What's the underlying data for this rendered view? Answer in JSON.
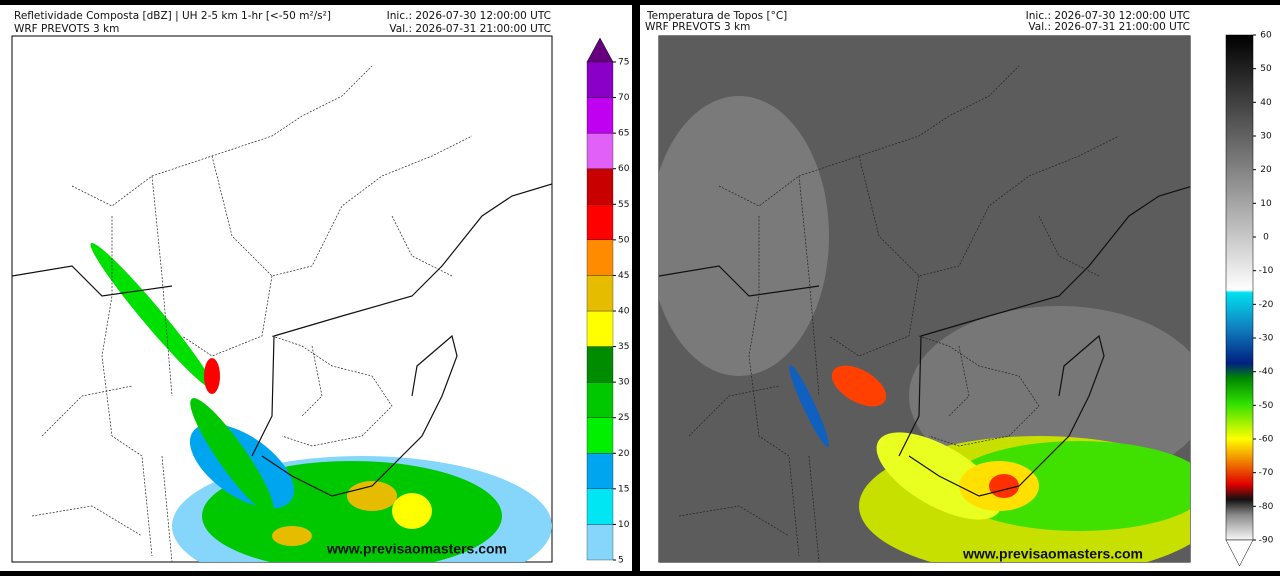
{
  "panels": [
    {
      "title": "Refletividade Composta [dBZ] | UH 2-5 km 1-hr [<-50 m²/s²]",
      "model": "WRF PREVOTS 3 km",
      "init": "Inic.: 2026-07-30 12:00:00 UTC",
      "valid": "Val.: 2026-07-31 21:00:00 UTC",
      "watermark": "www.previsaomasters.com",
      "colorbar": {
        "lim": [
          5,
          75
        ],
        "ticks": [
          5,
          10,
          15,
          20,
          25,
          30,
          35,
          40,
          45,
          50,
          55,
          60,
          65,
          70,
          75
        ],
        "colors": [
          "#86d6fb",
          "#00e6f2",
          "#00a5f0",
          "#00f000",
          "#00c800",
          "#008c00",
          "#ffff00",
          "#e6bc00",
          "#ff8c00",
          "#ff0000",
          "#c80000",
          "#e060f8",
          "#c000f0",
          "#8a00c8"
        ]
      }
    },
    {
      "title": "Temperatura de Topos [°C]",
      "model": "WRF PREVOTS 3 km",
      "init": "Inic.: 2026-07-30 12:00:00 UTC",
      "valid": "Val.: 2026-07-31 21:00:00 UTC",
      "watermark": "www.previsaomasters.com",
      "colorbar": {
        "lim": [
          -90,
          60
        ],
        "ticks": [
          -90,
          -80,
          -70,
          -60,
          -50,
          -40,
          -30,
          -20,
          -10,
          0,
          10,
          20,
          30,
          40,
          50,
          60
        ]
      }
    }
  ]
}
